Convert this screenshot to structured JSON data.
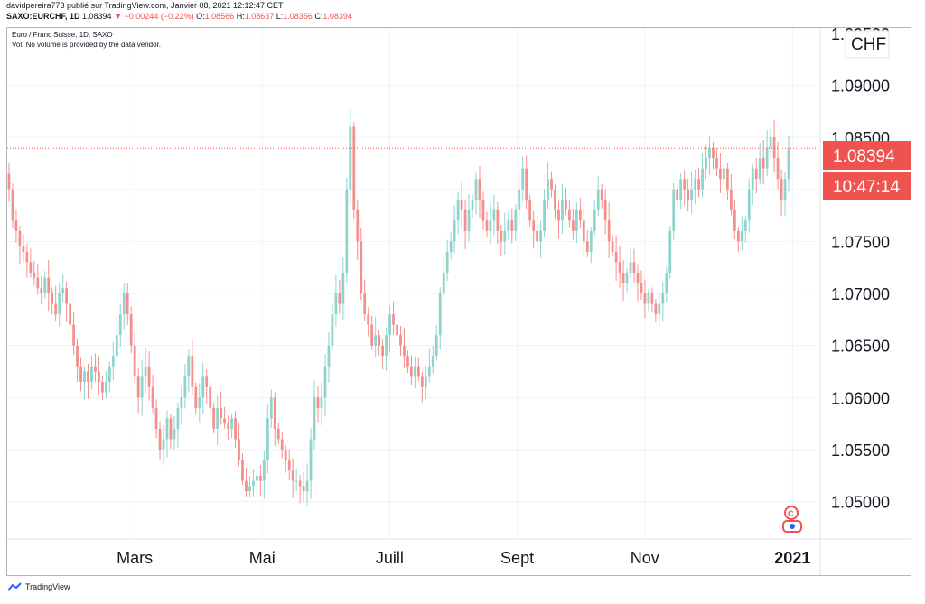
{
  "header": {
    "publisher_line": "davidpereira773 publié sur TradingView.com, Janvier 08, 2021 12:12:47 CET",
    "symbol": "SAXO:EURCHF, 1D",
    "last": "1.08394",
    "change_arrow": "▼",
    "change": "−0.00244 (−0.22%)",
    "o_label": "O:",
    "o_value": "1.08566",
    "h_label": "H:",
    "h_value": "1.08637",
    "l_label": "L:",
    "l_value": "1.08356",
    "c_label": "C:",
    "c_value": "1.08394"
  },
  "pane": {
    "title": "Euro / Franc Suisse, 1D, SAXO",
    "volume_note": "Vol: No volume is provided by the data vendor."
  },
  "footer": {
    "brand": "TradingView",
    "logo_icon": "tradingview-logo-icon"
  },
  "colors": {
    "up": "#26a69a",
    "up_soft": "#8fd3cb",
    "down": "#ef5350",
    "down_soft": "#f3908e",
    "grid": "#f0f3fa",
    "price_line": "#ef5350"
  },
  "chart_data": {
    "type": "candlestick",
    "title": "Euro / Franc Suisse, 1D, SAXO",
    "currency_label": "CHF",
    "y_range": [
      1.0465,
      1.0955
    ],
    "y_ticks": [
      "1.05000",
      "1.05500",
      "1.06000",
      "1.06500",
      "1.07000",
      "1.07500",
      "1.08000",
      "1.08500",
      "1.09000",
      "1.09500"
    ],
    "x_labels": [
      {
        "label": "Mars",
        "t": 0.157,
        "bold": false
      },
      {
        "label": "Mai",
        "t": 0.314,
        "bold": false
      },
      {
        "label": "Juill",
        "t": 0.471,
        "bold": false
      },
      {
        "label": "Sept",
        "t": 0.628,
        "bold": false
      },
      {
        "label": "Nov",
        "t": 0.785,
        "bold": false
      },
      {
        "label": "2021",
        "t": 0.967,
        "bold": true
      }
    ],
    "last_price": "1.08394",
    "last_price_value": 1.08394,
    "countdown": "10:47:14",
    "closes": [
      1.08,
      1.077,
      1.076,
      1.0745,
      1.074,
      1.073,
      1.072,
      1.0715,
      1.0705,
      1.07,
      1.0715,
      1.07,
      1.069,
      1.068,
      1.07,
      1.0705,
      1.069,
      1.067,
      1.065,
      1.063,
      1.0615,
      1.0625,
      1.0615,
      1.063,
      1.0625,
      1.0615,
      1.0605,
      1.0615,
      1.063,
      1.064,
      1.066,
      1.068,
      1.07,
      1.068,
      1.065,
      1.062,
      1.06,
      1.062,
      1.063,
      1.061,
      1.059,
      1.057,
      1.055,
      1.056,
      1.058,
      1.056,
      1.057,
      1.059,
      1.06,
      1.062,
      1.064,
      1.061,
      1.059,
      1.06,
      1.062,
      1.061,
      1.059,
      1.057,
      1.059,
      1.058,
      1.0575,
      1.057,
      1.058,
      1.056,
      1.054,
      1.052,
      1.051,
      1.0515,
      1.052,
      1.0525,
      1.052,
      1.054,
      1.058,
      1.06,
      1.057,
      1.056,
      1.055,
      1.054,
      1.053,
      1.052,
      1.052,
      1.0515,
      1.051,
      1.052,
      1.056,
      1.06,
      1.059,
      1.06,
      1.063,
      1.065,
      1.068,
      1.07,
      1.069,
      1.072,
      1.08,
      1.086,
      1.078,
      1.075,
      1.07,
      1.068,
      1.067,
      1.065,
      1.066,
      1.065,
      1.064,
      1.066,
      1.068,
      1.067,
      1.066,
      1.065,
      1.064,
      1.063,
      1.062,
      1.063,
      1.062,
      1.061,
      1.062,
      1.063,
      1.064,
      1.066,
      1.07,
      1.072,
      1.074,
      1.075,
      1.077,
      1.079,
      1.078,
      1.076,
      1.078,
      1.079,
      1.081,
      1.079,
      1.077,
      1.076,
      1.077,
      1.078,
      1.076,
      1.075,
      1.076,
      1.077,
      1.076,
      1.078,
      1.08,
      1.082,
      1.079,
      1.077,
      1.076,
      1.075,
      1.076,
      1.079,
      1.081,
      1.08,
      1.078,
      1.077,
      1.079,
      1.078,
      1.077,
      1.076,
      1.078,
      1.077,
      1.075,
      1.074,
      1.076,
      1.078,
      1.08,
      1.079,
      1.077,
      1.075,
      1.074,
      1.073,
      1.072,
      1.071,
      1.072,
      1.073,
      1.072,
      1.071,
      1.07,
      1.069,
      1.07,
      1.069,
      1.068,
      1.069,
      1.07,
      1.072,
      1.076,
      1.08,
      1.079,
      1.081,
      1.08,
      1.079,
      1.08,
      1.081,
      1.08,
      1.082,
      1.083,
      1.084,
      1.083,
      1.082,
      1.081,
      1.082,
      1.08,
      1.078,
      1.076,
      1.075,
      1.076,
      1.077,
      1.08,
      1.082,
      1.081,
      1.083,
      1.082,
      1.084,
      1.085,
      1.083,
      1.081,
      1.079,
      1.081,
      1.0839
    ]
  }
}
